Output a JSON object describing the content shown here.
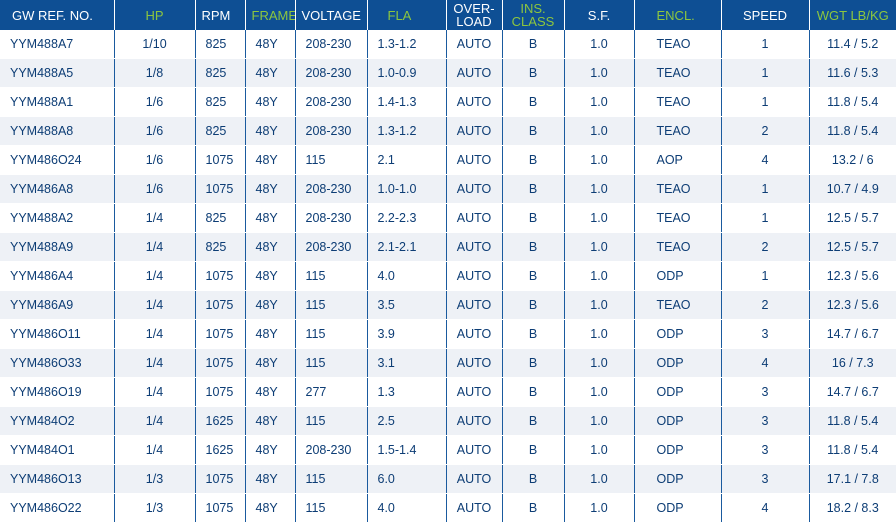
{
  "table": {
    "headers": [
      {
        "label": "GW REF. NO.",
        "highlight": false
      },
      {
        "label": "HP",
        "highlight": true
      },
      {
        "label": "RPM",
        "highlight": false
      },
      {
        "label": "FRAME",
        "highlight": true
      },
      {
        "label": "VOLTAGE",
        "highlight": false
      },
      {
        "label": "FLA",
        "highlight": true
      },
      {
        "label": "OVER-\nLOAD",
        "highlight": false
      },
      {
        "label": "INS.\nCLASS",
        "highlight": true
      },
      {
        "label": "S.F.",
        "highlight": false
      },
      {
        "label": "ENCL.",
        "highlight": true
      },
      {
        "label": "SPEED",
        "highlight": false
      },
      {
        "label": "WGT LB/KG",
        "highlight": true
      }
    ],
    "rows": [
      [
        "YYM488A7",
        "1/10",
        "825",
        "48Y",
        "208-230",
        "1.3-1.2",
        "AUTO",
        "B",
        "1.0",
        "TEAO",
        "1",
        "11.4 / 5.2"
      ],
      [
        "YYM488A5",
        "1/8",
        "825",
        "48Y",
        "208-230",
        "1.0-0.9",
        "AUTO",
        "B",
        "1.0",
        "TEAO",
        "1",
        "11.6 / 5.3"
      ],
      [
        "YYM488A1",
        "1/6",
        "825",
        "48Y",
        "208-230",
        "1.4-1.3",
        "AUTO",
        "B",
        "1.0",
        "TEAO",
        "1",
        "11.8 / 5.4"
      ],
      [
        "YYM488A8",
        "1/6",
        "825",
        "48Y",
        "208-230",
        "1.3-1.2",
        "AUTO",
        "B",
        "1.0",
        "TEAO",
        "2",
        "11.8 / 5.4"
      ],
      [
        "YYM486O24",
        "1/6",
        "1075",
        "48Y",
        "115",
        "2.1",
        "AUTO",
        "B",
        "1.0",
        "AOP",
        "4",
        "13.2 / 6"
      ],
      [
        "YYM486A8",
        "1/6",
        "1075",
        "48Y",
        "208-230",
        "1.0-1.0",
        "AUTO",
        "B",
        "1.0",
        "TEAO",
        "1",
        "10.7 / 4.9"
      ],
      [
        "YYM488A2",
        "1/4",
        "825",
        "48Y",
        "208-230",
        "2.2-2.3",
        "AUTO",
        "B",
        "1.0",
        "TEAO",
        "1",
        "12.5 / 5.7"
      ],
      [
        "YYM488A9",
        "1/4",
        "825",
        "48Y",
        "208-230",
        "2.1-2.1",
        "AUTO",
        "B",
        "1.0",
        "TEAO",
        "2",
        "12.5 / 5.7"
      ],
      [
        "YYM486A4",
        "1/4",
        "1075",
        "48Y",
        "115",
        "4.0",
        "AUTO",
        "B",
        "1.0",
        "ODP",
        "1",
        "12.3 / 5.6"
      ],
      [
        "YYM486A9",
        "1/4",
        "1075",
        "48Y",
        "115",
        "3.5",
        "AUTO",
        "B",
        "1.0",
        "TEAO",
        "2",
        "12.3 / 5.6"
      ],
      [
        "YYM486O11",
        "1/4",
        "1075",
        "48Y",
        "115",
        "3.9",
        "AUTO",
        "B",
        "1.0",
        "ODP",
        "3",
        "14.7 / 6.7"
      ],
      [
        "YYM486O33",
        "1/4",
        "1075",
        "48Y",
        "115",
        "3.1",
        "AUTO",
        "B",
        "1.0",
        "ODP",
        "4",
        "16 / 7.3"
      ],
      [
        "YYM486O19",
        "1/4",
        "1075",
        "48Y",
        "277",
        "1.3",
        "AUTO",
        "B",
        "1.0",
        "ODP",
        "3",
        "14.7 / 6.7"
      ],
      [
        "YYM484O2",
        "1/4",
        "1625",
        "48Y",
        "115",
        "2.5",
        "AUTO",
        "B",
        "1.0",
        "ODP",
        "3",
        "11.8 / 5.4"
      ],
      [
        "YYM484O1",
        "1/4",
        "1625",
        "48Y",
        "208-230",
        "1.5-1.4",
        "AUTO",
        "B",
        "1.0",
        "ODP",
        "3",
        "11.8 / 5.4"
      ],
      [
        "YYM486O13",
        "1/3",
        "1075",
        "48Y",
        "115",
        "6.0",
        "AUTO",
        "B",
        "1.0",
        "ODP",
        "3",
        "17.1 / 7.8"
      ],
      [
        "YYM486O22",
        "1/3",
        "1075",
        "48Y",
        "115",
        "4.0",
        "AUTO",
        "B",
        "1.0",
        "ODP",
        "4",
        "18.2 / 8.3"
      ]
    ]
  },
  "colors": {
    "header_bg": "#0e4f94",
    "header_text": "#ffffff",
    "header_highlight_text": "#8dc63f",
    "body_text": "#0d3d75",
    "row_alt_bg": "#eef1f6"
  }
}
